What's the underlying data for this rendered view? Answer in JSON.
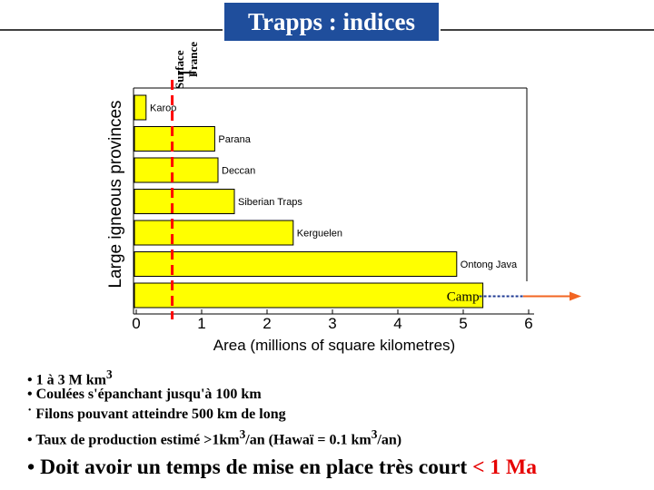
{
  "title": "Trapps : indices",
  "reference_label": {
    "line1": "Surface",
    "line2": "France"
  },
  "chart_data": {
    "type": "bar",
    "orientation": "horizontal",
    "ylabel": "Large igneous provinces",
    "xlabel": "Area (millions of square kilometres)",
    "xlim": [
      0,
      6
    ],
    "xticks": [
      "0",
      "1",
      "2",
      "3",
      "4",
      "5",
      "6"
    ],
    "categories": [
      "Karoo",
      "Parana",
      "Deccan",
      "Siberian Traps",
      "Kerguelen",
      "Ontong Java",
      "Camp"
    ],
    "values": [
      0.15,
      1.2,
      1.25,
      1.5,
      2.4,
      4.9,
      5.3
    ],
    "extends_beyond_axis": "Camp",
    "reference_line_value": 0.55,
    "colors": {
      "bar": "#ffff00",
      "reference": "#ff0000",
      "arrow": "#f26522",
      "title_bg": "#1f4e9c"
    }
  },
  "bullets": [
    {
      "text": "• 1 à 3 M km",
      "sup": "3",
      "rest": ""
    },
    {
      "text": "• Coulées s'épanchant  jusqu'à 100 km",
      "sup": "",
      "rest": ""
    },
    {
      "text": "˙ Filons pouvant atteindre 500 km de long",
      "sup": "",
      "rest": ""
    },
    {
      "text": "• Taux de production estimé >1km",
      "sup": "3",
      "rest": "/an (Hawaï = 0.1 km",
      "sup2": "3",
      "rest2": "/an)"
    }
  ],
  "conclusion": {
    "text": "• Doit avoir un temps de mise en place très court ",
    "highlight": "< 1 Ma"
  }
}
